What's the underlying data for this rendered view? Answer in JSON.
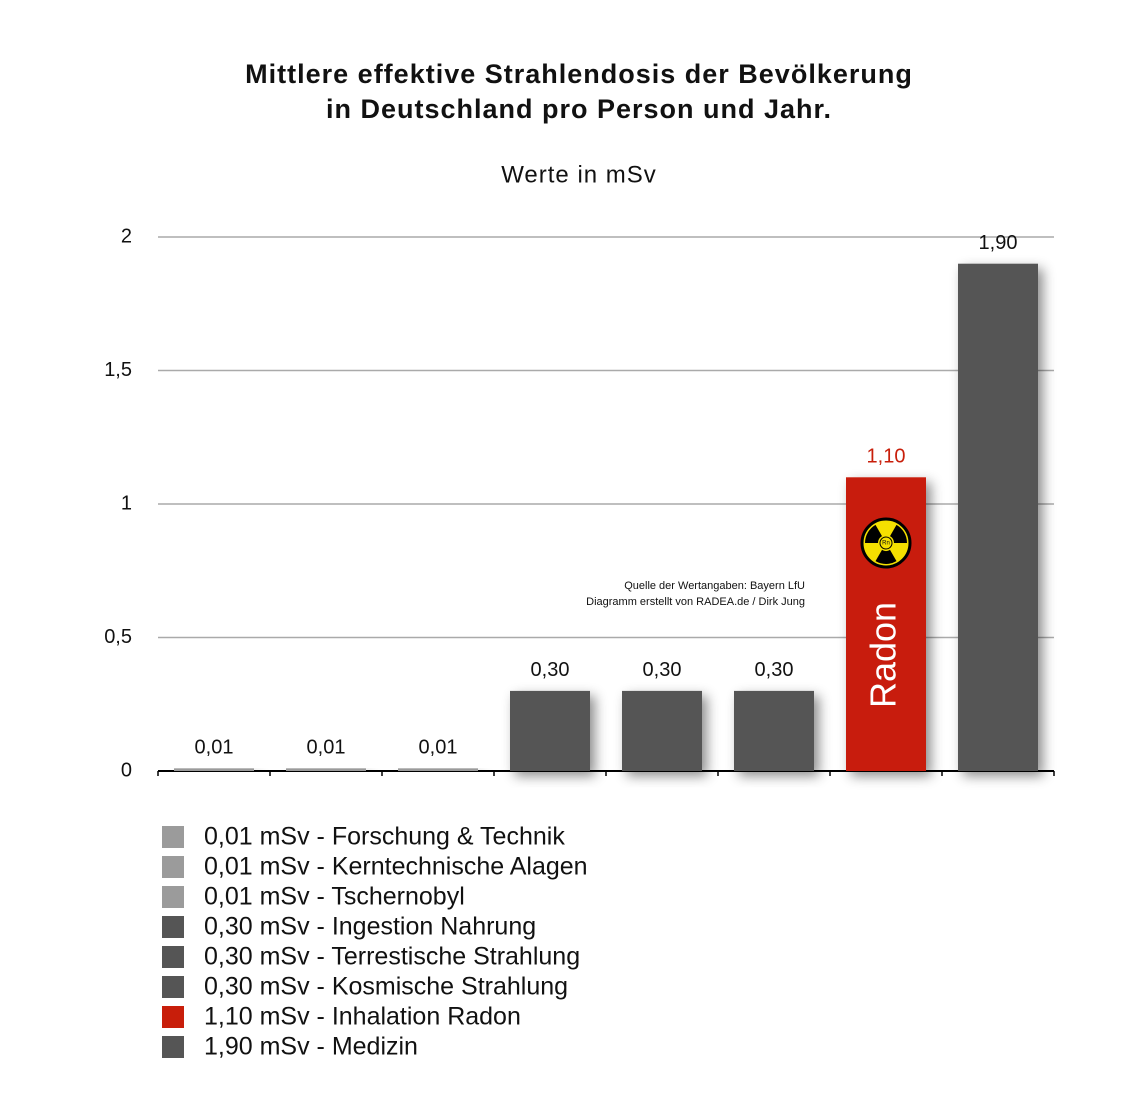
{
  "chart_data": {
    "type": "bar",
    "title": [
      "Mittlere effektive Strahlendosis der Bevölkerung",
      "in Deutschland pro Person und Jahr."
    ],
    "subtitle": "Werte in mSv",
    "values": [
      0.01,
      0.01,
      0.01,
      0.3,
      0.3,
      0.3,
      1.1,
      1.9
    ],
    "value_labels": [
      "0,01",
      "0,01",
      "0,01",
      "0,30",
      "0,30",
      "0,30",
      "1,10",
      "1,90"
    ],
    "colors": [
      "#9b9b9b",
      "#9b9b9b",
      "#9b9b9b",
      "#555555",
      "#555555",
      "#555555",
      "#c81e0a",
      "#555555"
    ],
    "label_colors": [
      "#111111",
      "#111111",
      "#111111",
      "#111111",
      "#111111",
      "#111111",
      "#c81e0a",
      "#111111"
    ],
    "legend": [
      "0,01 mSv - Forschung & Technik",
      "0,01 mSv - Kerntechnische Alagen",
      "0,01 mSv - Tschernobyl",
      "0,30 mSv - Ingestion Nahrung",
      "0,30 mSv - Terrestische Strahlung",
      "0,30 mSv - Kosmische Strahlung",
      "1,10 mSv - Inhalation Radon",
      "1,90 mSv - Medizin"
    ],
    "bar_text": "Radon",
    "icon_label": "Rn",
    "annotations": [
      "Quelle der Wertangaben: Bayern LfU",
      "Diagramm erstellt von RADEA.de / Dirk Jung"
    ],
    "ylim": [
      0,
      2
    ],
    "yticks": [
      0,
      {
        "value": 0.5,
        "label": "0,5"
      },
      1,
      {
        "value": 1.5,
        "label": "1,5"
      },
      2
    ],
    "grid": true
  }
}
